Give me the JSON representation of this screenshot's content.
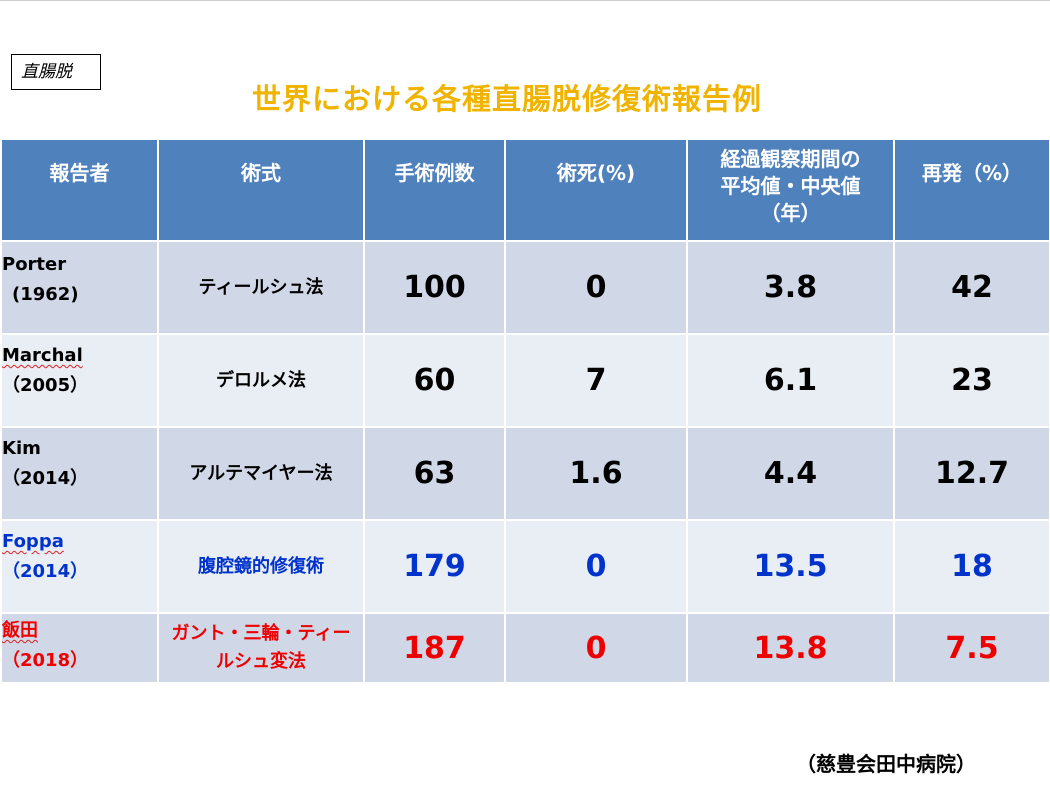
{
  "tag_label": "直腸脱",
  "title": "世界における各種直腸脱修復術報告例",
  "headers": {
    "reporter": "報告者",
    "method": "術式",
    "cases": "手術例数",
    "mortality": "術死(%)",
    "followup_line1": "経過観察期間の",
    "followup_line2": "平均値・中央値",
    "followup_line3": "（年）",
    "recurrence": "再発（%）"
  },
  "rows": [
    {
      "name": "Porter",
      "year": "(1962)",
      "method_line1": "ティールシュ法",
      "method_line2": "",
      "cases": "100",
      "mortality": "0",
      "followup": "3.8",
      "recurrence": "42"
    },
    {
      "name": "Marchal",
      "year": "（2005）",
      "method_line1": "デロルメ法",
      "method_line2": "",
      "cases": "60",
      "mortality": "7",
      "followup": "6.1",
      "recurrence": "23"
    },
    {
      "name": "Kim",
      "year": "（2014）",
      "method_line1": "アルテマイヤー法",
      "method_line2": "",
      "cases": "63",
      "mortality": "1.6",
      "followup": "4.4",
      "recurrence": "12.7"
    },
    {
      "name": "Foppa",
      "year": "（2014）",
      "method_line1": "腹腔鏡的修復術",
      "method_line2": "",
      "cases": "179",
      "mortality": "0",
      "followup": "13.5",
      "recurrence": "18"
    },
    {
      "name": "飯田",
      "year": "（2018）",
      "method_line1": "ガント・三輪・ティー",
      "method_line2": "ルシュ変法",
      "cases": "187",
      "mortality": "0",
      "followup": "13.8",
      "recurrence": "7.5"
    }
  ],
  "footer": "（慈豊会田中病院）",
  "colors": {
    "title": "#f0b400",
    "header_bg": "#4f81bd",
    "row_dark": "#d0d8e8",
    "row_light": "#e9edf4",
    "highlight_blue": "#0033cc",
    "highlight_red": "#ee0000"
  }
}
